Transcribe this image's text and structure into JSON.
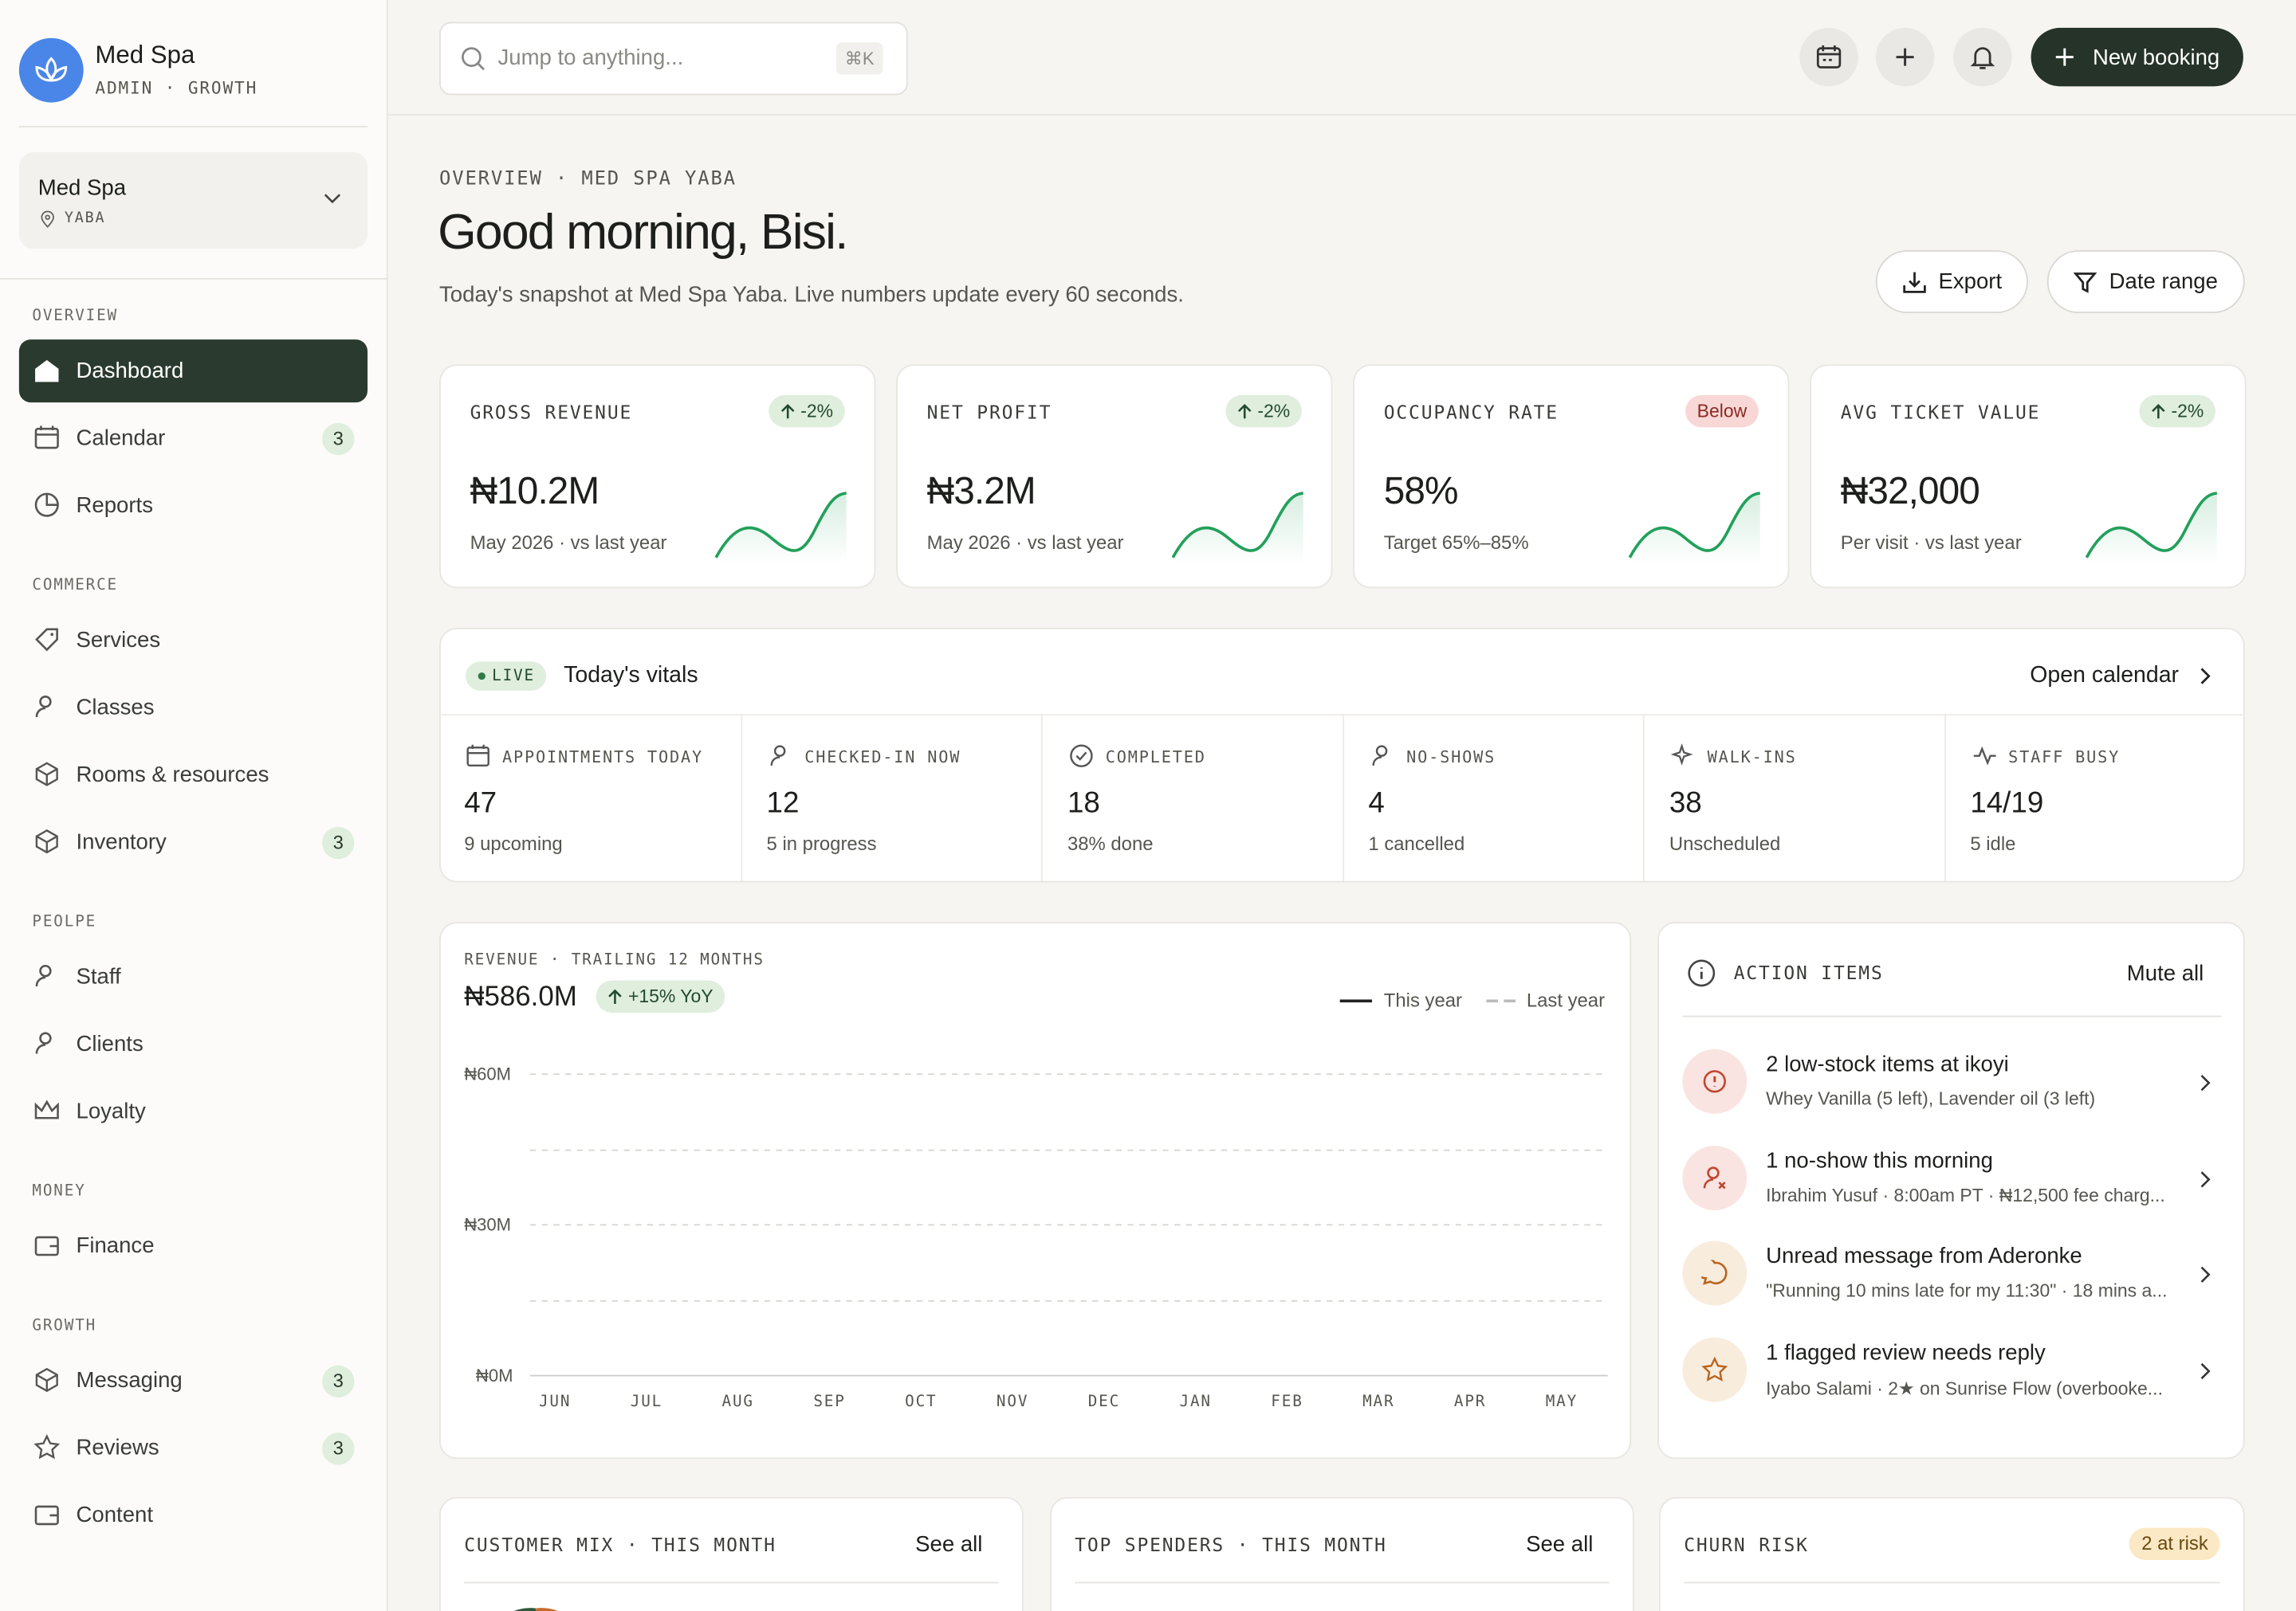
{
  "sidebar": {
    "brand": {
      "name": "Med Spa",
      "subtitle": "ADMIN · GROWTH"
    },
    "location": {
      "name": "Med Spa",
      "area": "YABA"
    },
    "sections": [
      {
        "title": "OVERVIEW",
        "items": [
          {
            "label": "Dashboard"
          },
          {
            "label": "Calendar",
            "badge": 3
          },
          {
            "label": "Reports"
          }
        ]
      },
      {
        "title": "COMMERCE",
        "items": [
          {
            "label": "Services"
          },
          {
            "label": "Classes"
          },
          {
            "label": "Rooms & resources"
          },
          {
            "label": "Inventory",
            "badge": 3
          }
        ]
      },
      {
        "title": "PEOLPE",
        "items": [
          {
            "label": "Staff"
          },
          {
            "label": "Clients"
          },
          {
            "label": "Loyalty"
          }
        ]
      },
      {
        "title": "MONEY",
        "items": [
          {
            "label": "Finance"
          }
        ]
      },
      {
        "title": "GROWTH",
        "items": [
          {
            "label": "Messaging",
            "badge": 3
          },
          {
            "label": "Reviews",
            "badge": 3
          },
          {
            "label": "Content"
          }
        ]
      }
    ]
  },
  "topbar": {
    "search_placeholder": "Jump to anything...",
    "shortcut": "⌘K",
    "new_booking": "New booking"
  },
  "header": {
    "eyebrow": "OVERVIEW · MED SPA YABA",
    "title": "Good morning, Bisi.",
    "subtitle": "Today's snapshot at Med Spa Yaba. Live numbers update every 60 seconds.",
    "export": "Export",
    "date_range": "Date range"
  },
  "kpis": [
    {
      "label": "GROSS REVENUE",
      "badge": "-2%",
      "value": "₦10.2M",
      "note": "May 2026 · vs last year"
    },
    {
      "label": "NET PROFIT",
      "badge": "-2%",
      "value": "₦3.2M",
      "note": "May 2026 · vs last year"
    },
    {
      "label": "OCCUPANCY RATE",
      "badge": "Below",
      "value": "58%",
      "note": "Target 65%–85%"
    },
    {
      "label": "AVG TICKET VALUE",
      "badge": "-2%",
      "value": "₦32,000",
      "note": "Per visit · vs last year"
    }
  ],
  "vitals": {
    "live": "LIVE",
    "title": "Today's vitals",
    "link": "Open calendar",
    "items": [
      {
        "label": "APPOINTMENTS TODAY",
        "value": 47,
        "note": "9 upcoming"
      },
      {
        "label": "CHECKED-IN NOW",
        "value": 12,
        "note": "5 in progress"
      },
      {
        "label": "COMPLETED",
        "value": 18,
        "note": "38% done"
      },
      {
        "label": "NO-SHOWS",
        "value": 4,
        "note": "1 cancelled"
      },
      {
        "label": "WALK-INS",
        "value": 38,
        "note": "Unscheduled"
      },
      {
        "label": "STAFF BUSY",
        "value": "14/19",
        "note": "5 idle"
      }
    ]
  },
  "revenue": {
    "eyebrow": "REVENUE · TRAILING 12 MONTHS",
    "total": "₦586.0M",
    "badge": "+15% YoY",
    "legend": [
      "This year",
      "Last year"
    ],
    "yticks": [
      "₦60M",
      "₦30M",
      "₦0M"
    ],
    "months": [
      "JUN",
      "JUL",
      "AUG",
      "SEP",
      "OCT",
      "NOV",
      "DEC",
      "JAN",
      "FEB",
      "MAR",
      "APR",
      "MAY"
    ]
  },
  "actions": {
    "title": "ACTION ITEMS",
    "mute": "Mute all",
    "items": [
      {
        "title": "2 low-stock items at ikoyi",
        "detail": "Whey Vanilla (5 left), Lavender oil (3 left)"
      },
      {
        "title": "1 no-show this morning",
        "detail": "Ibrahim Yusuf · 8:00am PT · ₦12,500 fee charg..."
      },
      {
        "title": "Unread message from Aderonke",
        "detail": "\"Running 10 mins late for my 11:30\" · 18 mins a..."
      },
      {
        "title": "1 flagged review needs reply",
        "detail": "Iyabo Salami · 2★ on Sunrise Flow (overbooke..."
      }
    ]
  },
  "bottom": [
    {
      "title": "CUSTOMER MIX · THIS MONTH",
      "link": "See all"
    },
    {
      "title": "TOP SPENDERS · THIS MONTH",
      "link": "See all"
    },
    {
      "title": "CHURN RISK",
      "badge": "2 at risk"
    }
  ]
}
